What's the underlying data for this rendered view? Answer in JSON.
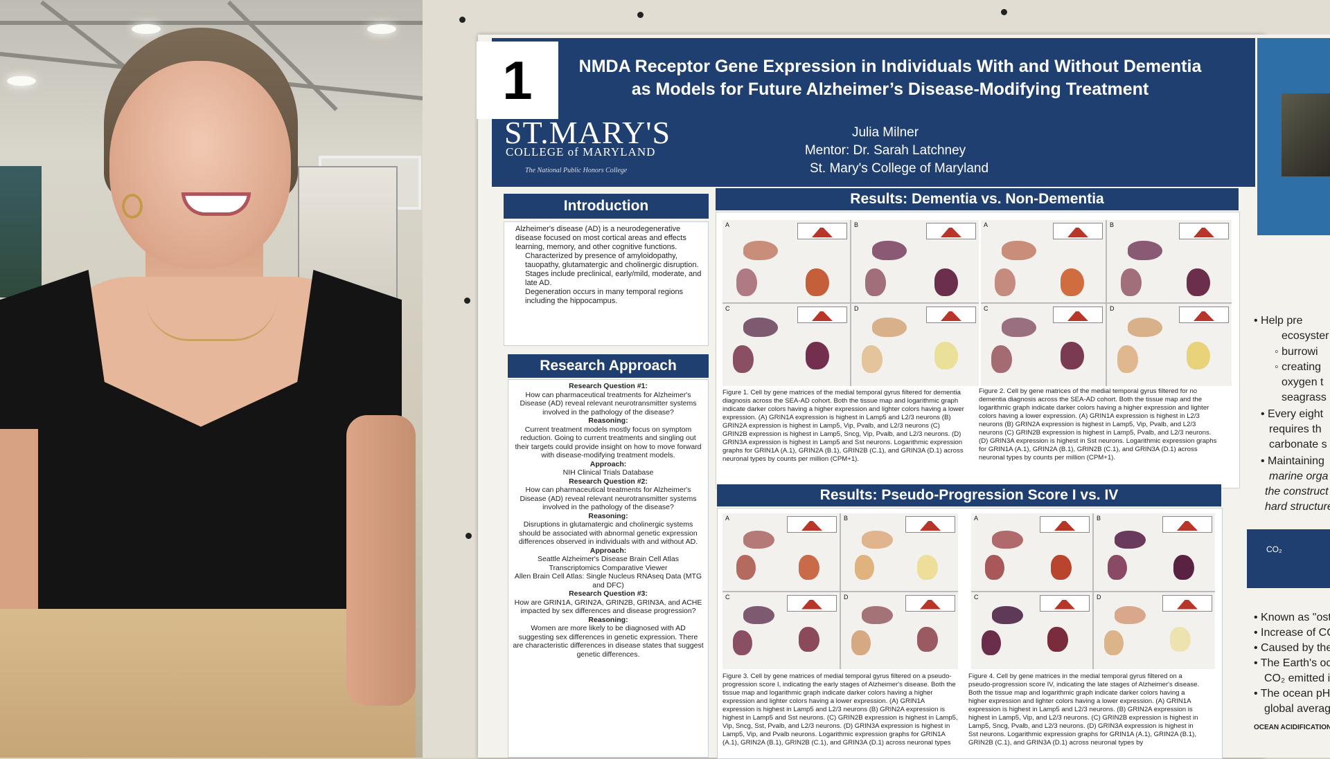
{
  "poster": {
    "number": "1",
    "title_line1": "NMDA Receptor Gene Expression in Individuals With and Without Dementia",
    "title_line2": "as Models for Future Alzheimer’s Disease-Modifying Treatment",
    "author": "Julia Milner",
    "mentor": "Mentor: Dr. Sarah Latchney",
    "affiliation": "St. Mary's College of Maryland",
    "logo_main": "ST.MARY'S",
    "logo_sub": "COLLEGE of MARYLAND",
    "logo_tag": "The National Public Honors College"
  },
  "introduction": {
    "heading": "Introduction",
    "bullet1": "Alzheimer's disease (AD) is a neurodegenerative disease focused on most cortical areas and effects learning, memory, and other cognitive functions.",
    "sub1": "Characterized by presence of amyloidopathy, tauopathy, glutamatergic and cholinergic disruption.",
    "sub2": "Stages include preclinical, early/mild, moderate, and late AD.",
    "sub3": "Degeneration occurs in many temporal regions including the hippocampus."
  },
  "approach": {
    "heading": "Research Approach",
    "q1_label": "Research Question #1:",
    "q1": "How can pharmaceutical treatments for Alzheimer's Disease (AD) reveal relevant neurotransmitter systems involved in the pathology of the disease?",
    "r_label": "Reasoning:",
    "r1": "Current treatment models mostly focus on symptom reduction. Going to current treatments and singling out their targets could provide insight on how to move forward with disease-modifying treatment models.",
    "a_label": "Approach:",
    "a1": "NIH Clinical Trials Database",
    "q2_label": "Research Question #2:",
    "q2": "How can pharmaceutical treatments for Alzheimer's Disease (AD) reveal relevant neurotransmitter systems involved in the pathology of the disease?",
    "r2": "Disruptions in glutamatergic and cholinergic systems should be associated with abnormal genetic expression differences observed in individuals with and without AD.",
    "a2_1": "Seattle Alzheimer's Disease Brain Cell Atlas",
    "a2_2": "Transcriptomics Comparative Viewer",
    "a2_3": "Allen Brain Cell Atlas: Single Nucleus RNAseq Data (MTG and DFC)",
    "q3_label": "Research Question #3:",
    "q3": "How are GRIN1A, GRIN2A, GRIN2B, GRIN3A, and ACHE impacted by sex differences and disease progression?",
    "r3": "Women are more likely to be diagnosed with AD suggesting sex differences in genetic expression. There are characteristic differences in disease states that suggest genetic differences."
  },
  "results1": {
    "heading": "Results: Dementia vs. Non-Dementia",
    "fig1": "Figure 1. Cell by gene matrices of the medial temporal gyrus filtered for dementia diagnosis across the SEA-AD cohort. Both the tissue map and logarithmic graph indicate darker colors having a higher expression and lighter colors having a lower expression. (A) GRIN1A expression is highest in Lamp5 and L2/3 neurons (B) GRIN2A expression is highest in Lamp5, Vip, Pvalb, and L2/3 neurons (C) GRIN2B expression is highest in Lamp5, Sncg, Vip, Pvalb, and L2/3 neurons. (D) GRIN3A expression is highest in Lamp5 and Sst neurons. Logarithmic expression graphs for GRIN1A (A.1), GRIN2A (B.1), GRIN2B (C.1), and GRIN3A (D.1) across neuronal types by counts per million (CPM+1).",
    "fig2": "Figure 2. Cell by gene matrices of the medial temporal gyrus filtered for no dementia diagnosis across the SEA-AD cohort. Both the tissue map and the logarithmic graph indicate darker colors having a higher expression and lighter colors having a lower expression. (A) GRIN1A expression is highest in L2/3 neurons (B) GRIN2A expression is highest in Lamp5, Vip, Pvalb, and L2/3 neurons (C) GRIN2B expression is highest in Lamp5, Pvalb, and L2/3 neurons. (D) GRIN3A expression is highest in Sst neurons. Logarithmic expression graphs for GRIN1A (A.1), GRIN2A (B.1), GRIN2B (C.1), and GRIN3A (D.1) across neuronal types by counts per million (CPM+1)."
  },
  "results2": {
    "heading": "Results: Pseudo-Progression Score I vs. IV",
    "fig3": "Figure 3. Cell by gene matrices of medial temporal gyrus filtered on a pseudo-progression score I, indicating the early stages of Alzheimer's disease. Both the tissue map and logarithmic graph indicate darker colors having a higher expression and lighter colors having a lower expression. (A) GRIN1A expression is highest in Lamp5 and L2/3 neurons (B) GRIN2A expression is highest in Lamp5 and Sst neurons. (C) GRIN2B expression is highest in Lamp5, Vip, Sncg, Sst, Pvalb, and L2/3 neurons. (D) GRIN3A expression is highest in Lamp5, Vip, and Pvalb neurons. Logarithmic expression graphs for GRIN1A (A.1), GRIN2A (B.1), GRIN2B (C.1), and GRIN3A (D.1) across neuronal types",
    "fig4": "Figure 4. Cell by gene matrices in the medial temporal gyrus filtered on a pseudo-progression score IV, indicating the late stages of Alzheimer's disease. Both the tissue map and logarithmic graph indicate darker colors having a higher expression and lighter colors having a lower expression. (A) GRIN1A expression is highest in Lamp5 and L2/3 neurons. (B) GRIN2A expression is highest in Lamp5, Vip, and L2/3 neurons. (C) GRIN2B expression is highest in Lamp5, Sncg, Pvalb, and L2/3 neurons. (D) GRIN3A expression is highest in Sst neurons. Logarithmic expression graphs for GRIN1A (A.1), GRIN2A (B.1), GRIN2B (C.1), and GRIN3A (D.1) across neuronal types by"
  },
  "right_poster": {
    "l1": "• Help pre",
    "l2": "ecosyster",
    "l3": "◦ burrowi",
    "l4": "◦ creating",
    "l5": "oxygen t",
    "l6": "seagrass",
    "l7": "• Every eight",
    "l8": "requires th",
    "l9": "carbonate s",
    "l10": "• Maintaining",
    "l11": "marine orga",
    "l12": "the construct",
    "l13": "hard structure",
    "l14": "• Known as \"ost",
    "l15": "• Increase of CC",
    "l16": "• Caused by the",
    "l17": "• The Earth's oc",
    "l18": "CO₂ emitted in",
    "l19": "• The ocean pH",
    "l20": "global average",
    "l21": "OCEAN ACIDIFICATION",
    "tile_co2": "CO₂"
  },
  "colors": {
    "poster_blue": "#1f3f71",
    "expression_red": "#b8352a"
  }
}
